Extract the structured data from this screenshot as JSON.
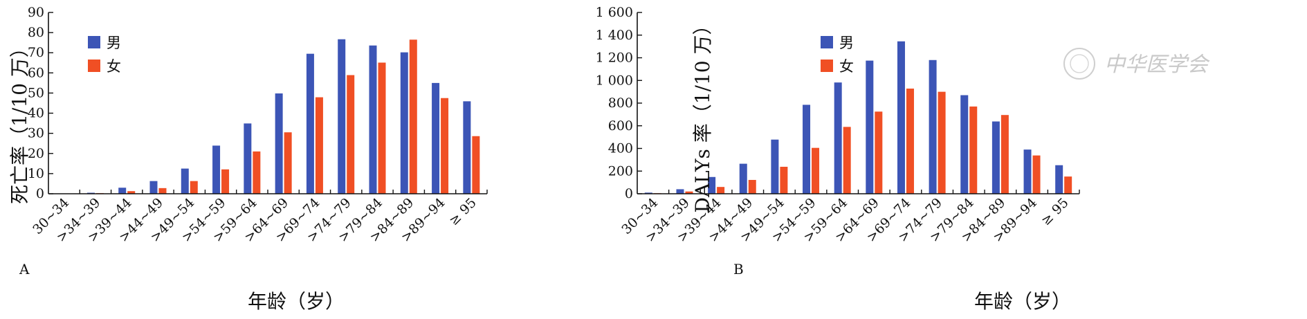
{
  "colors": {
    "male": "#3c55b6",
    "female": "#f04f24"
  },
  "chart_data": [
    {
      "panel": "A",
      "type": "bar",
      "xlabel": "年龄（岁）",
      "ylabel": "死亡率（1/10 万）",
      "ylim": [
        0,
        90
      ],
      "yticks": [
        0,
        10,
        20,
        30,
        40,
        50,
        60,
        70,
        80,
        90
      ],
      "ytick_labels": [
        "0",
        "10",
        "20",
        "30",
        "40",
        "50",
        "60",
        "70",
        "80",
        "90"
      ],
      "legend_position": "top-left",
      "categories": [
        "30~34",
        ">34~39",
        ">39~44",
        ">44~49",
        ">49~54",
        ">54~59",
        ">59~64",
        ">64~69",
        ">69~74",
        ">74~79",
        ">79~84",
        ">84~89",
        ">89~94",
        "≥ 95"
      ],
      "series": [
        {
          "name": "男",
          "color": "#3c55b6",
          "values": [
            0.1,
            0.5,
            3.0,
            6.3,
            12.5,
            23.9,
            34.9,
            49.8,
            69.5,
            76.7,
            73.6,
            70.2,
            55.0,
            45.9
          ]
        },
        {
          "name": "女",
          "color": "#f04f24",
          "values": [
            0.1,
            0.3,
            1.3,
            2.8,
            6.3,
            12.1,
            21.0,
            30.5,
            47.9,
            58.9,
            65.1,
            76.5,
            47.5,
            28.6
          ]
        }
      ]
    },
    {
      "panel": "B",
      "type": "bar",
      "xlabel": "年龄（岁）",
      "ylabel": "DALYs 率（1/10 万）",
      "ylim": [
        0,
        1600
      ],
      "yticks": [
        0,
        200,
        400,
        600,
        800,
        1000,
        1200,
        1400,
        1600
      ],
      "ytick_labels": [
        "0",
        "200",
        "400",
        "600",
        "800",
        "1 000",
        "1 200",
        "1 400",
        "1 600"
      ],
      "legend_position": "top-left",
      "categories": [
        "30~34",
        ">34~39",
        ">39~44",
        ">44~49",
        ">49~54",
        ">54~59",
        ">59~64",
        ">64~69",
        ">69~74",
        ">74~79",
        ">79~84",
        ">84~89",
        ">89~94",
        "≥ 95"
      ],
      "series": [
        {
          "name": "男",
          "color": "#3c55b6",
          "values": [
            10,
            40,
            148,
            265,
            478,
            785,
            982,
            1175,
            1345,
            1180,
            870,
            638,
            390,
            252
          ]
        },
        {
          "name": "女",
          "color": "#f04f24",
          "values": [
            5,
            20,
            60,
            122,
            238,
            405,
            590,
            725,
            928,
            900,
            770,
            695,
            338,
            152
          ]
        }
      ]
    }
  ],
  "watermark": {
    "text": "中华医学会"
  }
}
